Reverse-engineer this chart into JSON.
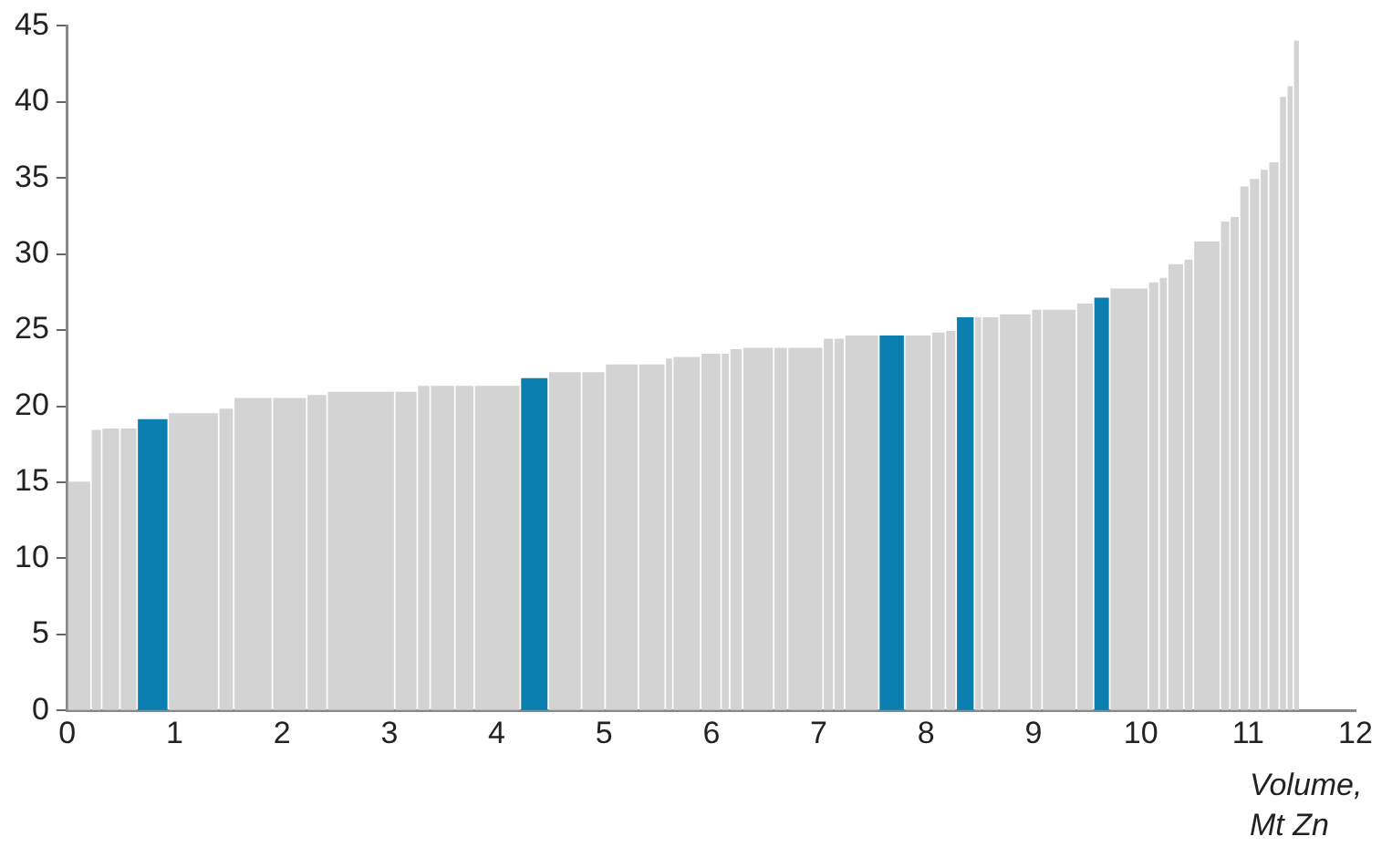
{
  "chart_data": {
    "type": "histogram",
    "xlabel": "Volume, Mt Zn",
    "bins": [
      0,
      0.22,
      0.32,
      0.49,
      0.65,
      0.94,
      1.41,
      1.55,
      1.91,
      2.23,
      2.42,
      3.05,
      3.26,
      3.38,
      3.61,
      3.79,
      4.22,
      4.48,
      4.79,
      5.01,
      5.32,
      5.57,
      5.64,
      5.9,
      6.09,
      6.17,
      6.29,
      6.58,
      6.71,
      7.04,
      7.14,
      7.24,
      7.56,
      7.8,
      8.05,
      8.18,
      8.28,
      8.45,
      8.52,
      8.68,
      8.98,
      9.08,
      9.4,
      9.56,
      9.71,
      10.07,
      10.17,
      10.25,
      10.4,
      10.49,
      10.74,
      10.83,
      10.92,
      11.01,
      11.11,
      11.19,
      11.29,
      11.36,
      11.42,
      11.48
    ],
    "values": [
      15.0,
      18.4,
      18.5,
      18.5,
      19.1,
      19.5,
      19.8,
      20.5,
      20.5,
      20.7,
      20.9,
      20.9,
      21.3,
      21.3,
      21.3,
      21.3,
      21.8,
      22.2,
      22.2,
      22.7,
      22.7,
      23.1,
      23.2,
      23.4,
      23.4,
      23.7,
      23.8,
      23.8,
      23.8,
      24.4,
      24.4,
      24.6,
      24.6,
      24.6,
      24.8,
      24.9,
      25.8,
      25.8,
      25.8,
      26.0,
      26.3,
      26.3,
      26.7,
      27.1,
      27.7,
      28.1,
      28.4,
      29.3,
      29.6,
      30.8,
      32.1,
      32.4,
      34.4,
      34.9,
      35.5,
      36.0,
      40.3,
      41.0,
      44.0
    ],
    "colors": [
      "#d3d3d3",
      "#d3d3d3",
      "#d3d3d3",
      "#d3d3d3",
      "#0a7fb0",
      "#d3d3d3",
      "#d3d3d3",
      "#d3d3d3",
      "#d3d3d3",
      "#d3d3d3",
      "#d3d3d3",
      "#d3d3d3",
      "#d3d3d3",
      "#d3d3d3",
      "#d3d3d3",
      "#d3d3d3",
      "#0a7fb0",
      "#d3d3d3",
      "#d3d3d3",
      "#d3d3d3",
      "#d3d3d3",
      "#d3d3d3",
      "#d3d3d3",
      "#d3d3d3",
      "#d3d3d3",
      "#d3d3d3",
      "#d3d3d3",
      "#d3d3d3",
      "#d3d3d3",
      "#d3d3d3",
      "#d3d3d3",
      "#d3d3d3",
      "#0a7fb0",
      "#d3d3d3",
      "#d3d3d3",
      "#d3d3d3",
      "#0a7fb0",
      "#d3d3d3",
      "#d3d3d3",
      "#d3d3d3",
      "#d3d3d3",
      "#d3d3d3",
      "#d3d3d3",
      "#0a7fb0",
      "#d3d3d3",
      "#d3d3d3",
      "#d3d3d3",
      "#d3d3d3",
      "#d3d3d3",
      "#d3d3d3",
      "#d3d3d3",
      "#d3d3d3",
      "#d3d3d3",
      "#d3d3d3",
      "#d3d3d3",
      "#d3d3d3",
      "#d3d3d3",
      "#d3d3d3",
      "#d3d3d3"
    ],
    "xlim": [
      0,
      12
    ],
    "xticks": [
      0,
      1,
      2,
      3,
      4,
      5,
      6,
      7,
      8,
      9,
      10,
      11,
      12
    ],
    "ylim": [
      0,
      45
    ],
    "yticks": [
      0,
      5,
      10,
      15,
      20,
      25,
      30,
      35,
      40,
      45
    ],
    "grid": false,
    "legend": false
  }
}
